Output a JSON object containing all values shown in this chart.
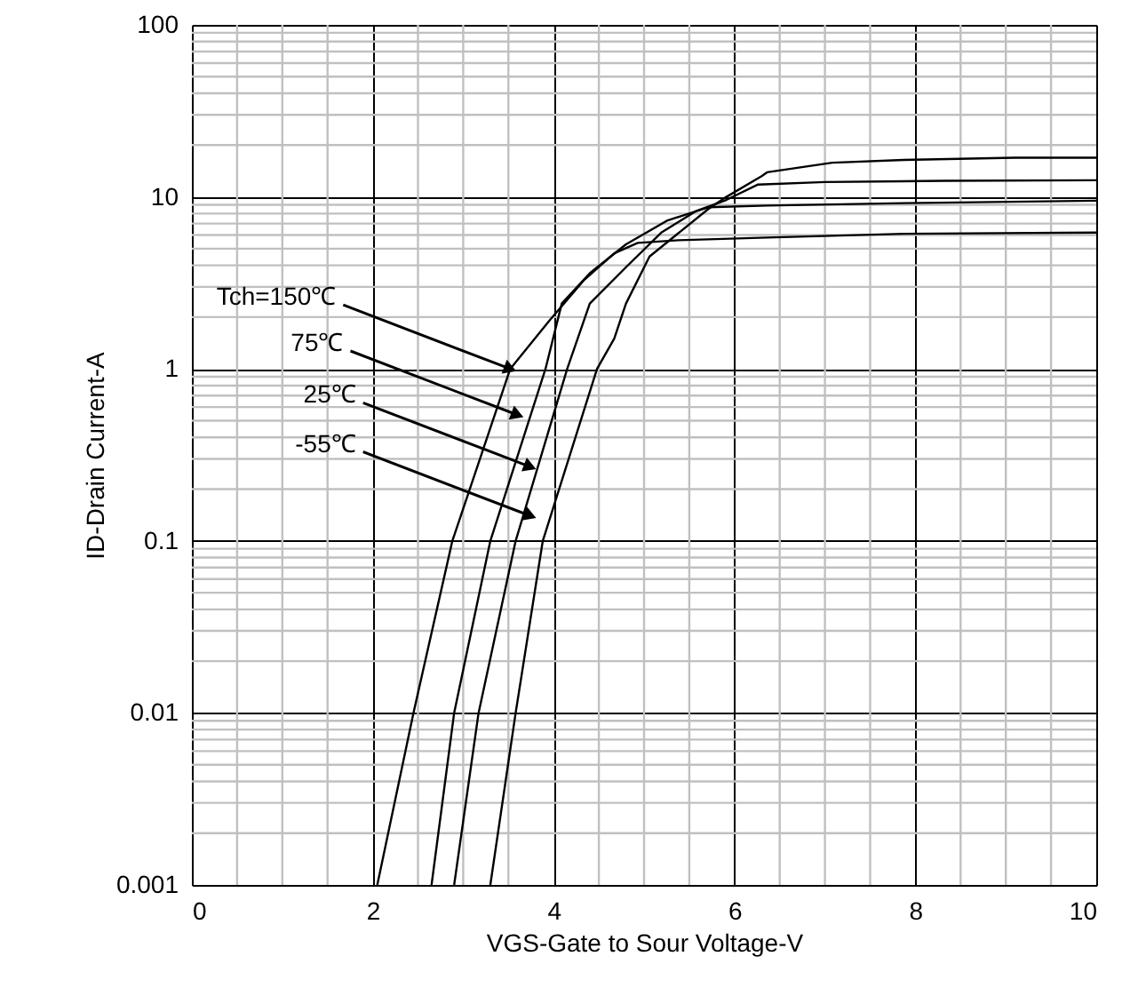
{
  "chart_data": {
    "type": "line",
    "xlabel": "VGS-Gate to Sour Voltage-V",
    "ylabel": "ID-Drain Current-A",
    "log": "y",
    "grid": true,
    "marker": "none",
    "line_style": "solid",
    "xlim": [
      0,
      10
    ],
    "ylim": [
      0.001,
      100
    ],
    "xticks": [
      0,
      {
        "value": 0.5,
        "label": null
      },
      {
        "value": 1,
        "label": null
      },
      {
        "value": 1.5,
        "label": null
      },
      2,
      {
        "value": 2.5,
        "label": null
      },
      {
        "value": 3,
        "label": null
      },
      {
        "value": 3.5,
        "label": null
      },
      4,
      {
        "value": 4.5,
        "label": null
      },
      {
        "value": 5,
        "label": null
      },
      {
        "value": 5.5,
        "label": null
      },
      6,
      {
        "value": 6.5,
        "label": null
      },
      {
        "value": 7,
        "label": null
      },
      {
        "value": 7.5,
        "label": null
      },
      8,
      {
        "value": 8.5,
        "label": null
      },
      {
        "value": 9,
        "label": null
      },
      {
        "value": 9.5,
        "label": null
      },
      10
    ],
    "yticks": [
      0.001,
      {
        "value": 0.002,
        "label": null
      },
      {
        "value": 0.003,
        "label": null
      },
      {
        "value": 0.004,
        "label": null
      },
      {
        "value": 0.005,
        "label": null
      },
      {
        "value": 0.006,
        "label": null
      },
      {
        "value": 0.007,
        "label": null
      },
      {
        "value": 0.008,
        "label": null
      },
      {
        "value": 0.009,
        "label": null
      },
      0.01,
      {
        "value": 0.02,
        "label": null
      },
      {
        "value": 0.03,
        "label": null
      },
      {
        "value": 0.04,
        "label": null
      },
      {
        "value": 0.05,
        "label": null
      },
      {
        "value": 0.06,
        "label": null
      },
      {
        "value": 0.07,
        "label": null
      },
      {
        "value": 0.08,
        "label": null
      },
      {
        "value": 0.09,
        "label": null
      },
      0.1,
      {
        "value": 0.2,
        "label": null
      },
      {
        "value": 0.3,
        "label": null
      },
      {
        "value": 0.4,
        "label": null
      },
      {
        "value": 0.5,
        "label": null
      },
      {
        "value": 0.6,
        "label": null
      },
      {
        "value": 0.7,
        "label": null
      },
      {
        "value": 0.8,
        "label": null
      },
      {
        "value": 0.9,
        "label": null
      },
      1,
      {
        "value": 2,
        "label": null
      },
      {
        "value": 3,
        "label": null
      },
      {
        "value": 4,
        "label": null
      },
      {
        "value": 5,
        "label": null
      },
      {
        "value": 6,
        "label": null
      },
      {
        "value": 7,
        "label": null
      },
      {
        "value": 8,
        "label": null
      },
      {
        "value": 9,
        "label": null
      },
      10,
      {
        "value": 20,
        "label": null
      },
      {
        "value": 30,
        "label": null
      },
      {
        "value": 40,
        "label": null
      },
      {
        "value": 50,
        "label": null
      },
      {
        "value": 60,
        "label": null
      },
      {
        "value": 70,
        "label": null
      },
      {
        "value": 80,
        "label": null
      },
      {
        "value": 90,
        "label": null
      },
      100
    ],
    "series": [
      {
        "color": "#000000",
        "x": [
          2.05,
          2.45,
          2.88,
          3.52,
          3.95,
          4.34,
          4.67,
          4.93,
          5.38,
          6.36,
          7.87,
          10
        ],
        "values": [
          0.001,
          0.01,
          0.1,
          1,
          1.9,
          3.3,
          4.7,
          5.4,
          5.6,
          5.8,
          6.1,
          6.2
        ]
      },
      {
        "color": "#000000",
        "x": [
          2.65,
          2.9,
          3.3,
          3.91,
          4.09,
          4.4,
          4.8,
          5.26,
          5.71,
          6.36,
          7.87,
          10
        ],
        "values": [
          0.001,
          0.01,
          0.1,
          1,
          2.4,
          3.6,
          5.3,
          7.3,
          8.7,
          8.9,
          9.2,
          9.5
        ]
      },
      {
        "color": "#000000",
        "x": [
          2.9,
          3.17,
          3.58,
          4.15,
          4.4,
          4.8,
          5.19,
          5.58,
          5.91,
          6.26,
          7.0,
          8.32,
          10
        ],
        "values": [
          0.001,
          0.01,
          0.1,
          1,
          2.4,
          3.9,
          6.2,
          8.3,
          9.6,
          11.8,
          12.2,
          12.4,
          12.5
        ]
      },
      {
        "color": "#000000",
        "x": [
          3.3,
          3.58,
          3.88,
          4.48,
          4.67,
          4.8,
          5.06,
          5.71,
          5.91,
          6.3,
          6.36,
          7.08,
          7.87,
          9.1,
          10
        ],
        "values": [
          0.001,
          0.01,
          0.1,
          1,
          1.5,
          2.4,
          4.5,
          8.5,
          10,
          13.2,
          13.9,
          15.8,
          16.4,
          16.9,
          16.9
        ]
      }
    ],
    "annotations": [
      {
        "text": "Tch=150℃",
        "x": 3.52,
        "y": 1
      },
      {
        "text": "75℃",
        "x": 3.6,
        "y": 0.54
      },
      {
        "text": "25℃",
        "x": 3.74,
        "y": 0.27
      },
      {
        "text": "-55℃",
        "x": 3.74,
        "y": 0.14
      }
    ]
  }
}
